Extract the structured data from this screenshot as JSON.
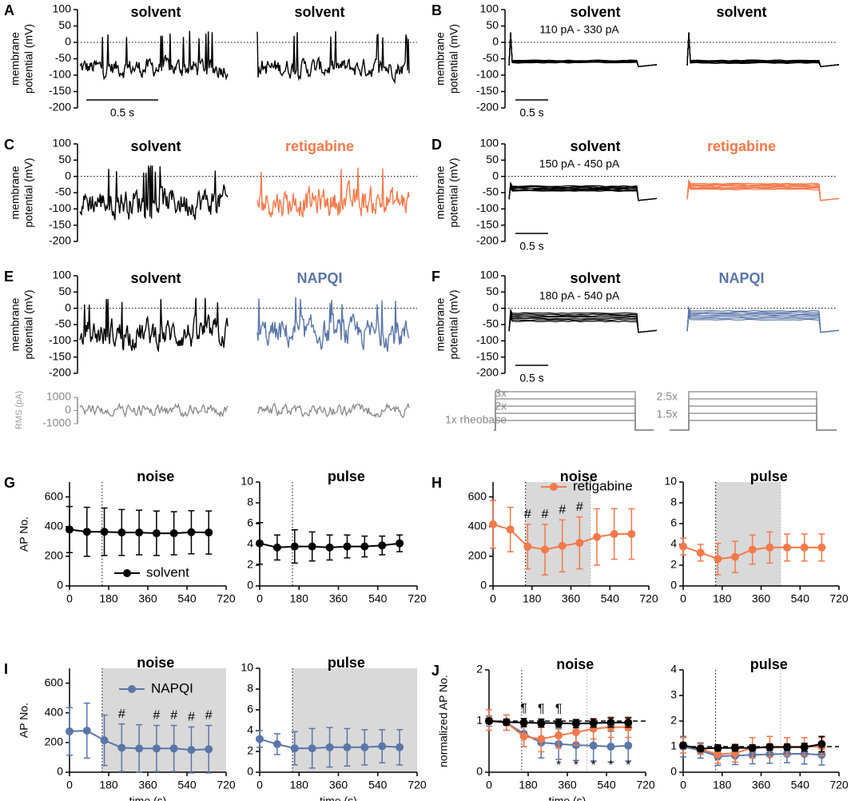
{
  "panels": [
    {
      "letter": "A",
      "type": "noise_trace",
      "ylabel": [
        "membrane",
        "potential (mV)"
      ],
      "ylim": [
        -200,
        100
      ],
      "yticks": [
        100,
        50,
        0,
        -50,
        -100,
        -150,
        -200
      ],
      "left_title": "solvent",
      "right_title": "solvent",
      "right_color": "#000000",
      "scale_bar": "0.5 s"
    },
    {
      "letter": "B",
      "type": "step_trace",
      "ylabel": [
        "membrane",
        "potential (mV)"
      ],
      "ylim": [
        -200,
        100
      ],
      "yticks": [
        100,
        50,
        0,
        -50,
        -100,
        -150,
        -200
      ],
      "left_title": "solvent",
      "right_title": "solvent",
      "right_color": "#000000",
      "scale_bar": "0.5 s",
      "current_label": "110 pA - 330 pA"
    },
    {
      "letter": "C",
      "type": "noise_trace",
      "ylabel": [
        "membrane",
        "potential (mV)"
      ],
      "ylim": [
        -200,
        100
      ],
      "yticks": [
        100,
        50,
        0,
        -50,
        -100,
        -150,
        -200
      ],
      "left_title": "solvent",
      "right_title": "retigabine",
      "right_color": "#f4794a"
    },
    {
      "letter": "D",
      "type": "step_trace",
      "ylabel": [
        "membrane",
        "potential (mV)"
      ],
      "ylim": [
        -200,
        100
      ],
      "yticks": [
        100,
        50,
        0,
        -50,
        -100,
        -150,
        -200
      ],
      "left_title": "solvent",
      "right_title": "retigabine",
      "right_color": "#f4794a",
      "scale_bar": "0.5 s",
      "current_label": "150 pA - 450 pA"
    },
    {
      "letter": "E",
      "type": "noise_trace",
      "ylabel": [
        "membrane",
        "potential (mV)"
      ],
      "ylim": [
        -200,
        100
      ],
      "yticks": [
        100,
        50,
        0,
        -50,
        -100,
        -150,
        -200
      ],
      "left_title": "solvent",
      "right_title": "NAPQI",
      "right_color": "#5a76a8"
    },
    {
      "letter": "F",
      "type": "step_trace",
      "ylabel": [
        "membrane",
        "potential (mV)"
      ],
      "ylim": [
        -200,
        100
      ],
      "yticks": [
        100,
        50,
        0,
        -50,
        -100,
        -150,
        -200
      ],
      "left_title": "solvent",
      "right_title": "NAPQI",
      "right_color": "#5a76a8",
      "scale_bar": "0.5 s",
      "current_label": "180 pA - 540 pA"
    }
  ],
  "stimulus": {
    "ylabel": "RMS (pA)",
    "ylim": [
      -1000,
      1000
    ],
    "yticks": [
      1000,
      0,
      -1000
    ],
    "left_labels": [
      "3x",
      "2x",
      "1x rheobase"
    ],
    "right_labels": [
      "2.5x",
      "1.5x"
    ]
  },
  "chart_data": [
    {
      "letter": "G",
      "type": "line",
      "title": "noise",
      "ylabel": "AP No.",
      "xlim": [
        0,
        720
      ],
      "xticks": [
        0,
        180,
        360,
        540,
        720
      ],
      "ylim": [
        0,
        700
      ],
      "yticks": [
        0,
        200,
        400,
        600
      ],
      "x": [
        0,
        80,
        160,
        240,
        320,
        400,
        480,
        560,
        640
      ],
      "vlines": [
        150
      ],
      "legend": "lower right",
      "series": [
        {
          "name": "solvent",
          "color": "#000000",
          "values": [
            380,
            365,
            365,
            360,
            360,
            355,
            355,
            362,
            360
          ],
          "errors": [
            155,
            165,
            160,
            155,
            150,
            150,
            145,
            145,
            145
          ]
        }
      ]
    },
    {
      "type": "line",
      "title": "pulse",
      "xlim": [
        0,
        720
      ],
      "xticks": [
        0,
        180,
        360,
        540,
        720
      ],
      "ylim": [
        0,
        10
      ],
      "yticks": [
        0,
        2,
        4,
        6,
        8,
        10
      ],
      "x": [
        0,
        80,
        160,
        240,
        320,
        400,
        480,
        560,
        640
      ],
      "vlines": [
        150
      ],
      "series": [
        {
          "color": "#000000",
          "values": [
            4.1,
            3.7,
            3.8,
            3.8,
            3.7,
            3.8,
            3.8,
            3.9,
            4.1
          ],
          "errors": [
            2.0,
            1.2,
            1.6,
            1.4,
            1.2,
            1.1,
            1.0,
            0.9,
            0.8
          ]
        }
      ]
    },
    {
      "letter": "H",
      "type": "line",
      "title": "noise",
      "xlim": [
        0,
        720
      ],
      "xticks": [
        0,
        180,
        360,
        540,
        720
      ],
      "ylim": [
        0,
        700
      ],
      "yticks": [
        0,
        200,
        400,
        600
      ],
      "x": [
        0,
        80,
        160,
        240,
        320,
        400,
        480,
        560,
        640
      ],
      "shade": [
        150,
        450
      ],
      "vlines": [
        150,
        450
      ],
      "legend": "upper center",
      "series": [
        {
          "name": "retigabine",
          "color": "#f4794a",
          "values": [
            415,
            380,
            265,
            245,
            270,
            290,
            330,
            350,
            350
          ],
          "errors": [
            160,
            150,
            150,
            170,
            175,
            175,
            190,
            170,
            170
          ]
        }
      ],
      "annotations": [
        {
          "text": "#",
          "index": 2,
          "position": "above"
        },
        {
          "text": "#",
          "index": 3,
          "position": "above"
        },
        {
          "text": "#",
          "index": 4,
          "position": "above"
        },
        {
          "text": "#",
          "index": 5,
          "position": "above"
        }
      ]
    },
    {
      "type": "line",
      "title": "pulse",
      "xlim": [
        0,
        720
      ],
      "xticks": [
        0,
        180,
        360,
        540,
        720
      ],
      "ylim": [
        0,
        10
      ],
      "yticks": [
        0,
        2,
        4,
        6,
        8,
        10
      ],
      "x": [
        0,
        80,
        160,
        240,
        320,
        400,
        480,
        560,
        640
      ],
      "shade": [
        150,
        450
      ],
      "vlines": [
        150,
        450
      ],
      "series": [
        {
          "color": "#f4794a",
          "values": [
            3.8,
            3.2,
            2.6,
            2.8,
            3.5,
            3.7,
            3.7,
            3.7,
            3.7
          ],
          "errors": [
            0.8,
            0.8,
            1.5,
            1.5,
            1.4,
            1.5,
            1.3,
            1.3,
            1.3
          ]
        }
      ]
    },
    {
      "letter": "I",
      "type": "line",
      "title": "noise",
      "ylabel": "AP No.",
      "xlabel": "time (s)",
      "xlim": [
        0,
        720
      ],
      "xticks": [
        0,
        180,
        360,
        540,
        720
      ],
      "ylim": [
        0,
        700
      ],
      "yticks": [
        0,
        200,
        400,
        600
      ],
      "x": [
        0,
        80,
        160,
        240,
        320,
        400,
        480,
        560,
        640
      ],
      "shade": [
        150,
        720
      ],
      "vlines": [
        150
      ],
      "legend": "upper left",
      "series": [
        {
          "name": "NAPQI",
          "color": "#5a76a8",
          "values": [
            275,
            280,
            215,
            165,
            160,
            160,
            160,
            150,
            155
          ],
          "errors": [
            160,
            185,
            170,
            160,
            160,
            155,
            155,
            155,
            160
          ]
        }
      ],
      "annotations": [
        {
          "text": "#",
          "index": 3,
          "position": "above"
        },
        {
          "text": "#",
          "index": 5,
          "position": "above"
        },
        {
          "text": "#",
          "index": 6,
          "position": "above"
        },
        {
          "text": "#",
          "index": 7,
          "position": "above"
        },
        {
          "text": "#",
          "index": 8,
          "position": "above"
        }
      ]
    },
    {
      "type": "line",
      "title": "pulse",
      "xlabel": "time (s)",
      "xlim": [
        0,
        720
      ],
      "xticks": [
        0,
        180,
        360,
        540,
        720
      ],
      "ylim": [
        0,
        10
      ],
      "yticks": [
        0,
        2,
        4,
        6,
        8,
        10
      ],
      "x": [
        0,
        80,
        160,
        240,
        320,
        400,
        480,
        560,
        640
      ],
      "shade": [
        150,
        720
      ],
      "vlines": [
        150
      ],
      "series": [
        {
          "color": "#5a76a8",
          "values": [
            3.2,
            2.7,
            2.3,
            2.3,
            2.4,
            2.4,
            2.4,
            2.5,
            2.4
          ],
          "errors": [
            0.8,
            1.0,
            1.6,
            1.9,
            1.9,
            1.8,
            1.7,
            1.6,
            1.7
          ]
        }
      ]
    },
    {
      "letter": "J",
      "type": "line",
      "title": "noise",
      "ylabel": "normalized AP No.",
      "xlabel": "time (s)",
      "xlim": [
        0,
        720
      ],
      "xticks": [
        0,
        180,
        360,
        540,
        720
      ],
      "ylim": [
        0,
        2
      ],
      "yticks": [
        0,
        1,
        2
      ],
      "x": [
        0,
        80,
        160,
        240,
        320,
        400,
        480,
        560,
        640
      ],
      "vlines": [
        150,
        450
      ],
      "refline": 1,
      "series": [
        {
          "color": "#5a76a8",
          "values": [
            1.0,
            0.97,
            0.75,
            0.58,
            0.55,
            0.53,
            0.52,
            0.5,
            0.52
          ],
          "errors": [
            0.1,
            0.15,
            0.25,
            0.3,
            0.3,
            0.3,
            0.3,
            0.3,
            0.3
          ]
        },
        {
          "color": "#f4794a",
          "values": [
            1.02,
            0.97,
            0.7,
            0.65,
            0.72,
            0.78,
            0.85,
            0.88,
            0.88
          ],
          "errors": [
            0.2,
            0.15,
            0.2,
            0.25,
            0.25,
            0.25,
            0.2,
            0.2,
            0.2
          ]
        },
        {
          "color": "#000000",
          "values": [
            1.0,
            0.98,
            0.97,
            0.96,
            0.96,
            0.95,
            0.96,
            0.97,
            0.97
          ],
          "errors": [
            0.05,
            0.06,
            0.08,
            0.08,
            0.08,
            0.08,
            0.08,
            0.09,
            0.09
          ]
        }
      ],
      "annotations": [
        {
          "text": "¶",
          "index": 2,
          "position": "above"
        },
        {
          "text": "¶",
          "index": 3,
          "position": "above"
        },
        {
          "text": "¶",
          "index": 4,
          "position": "above"
        },
        {
          "text": "*",
          "index": 4,
          "position": "below"
        },
        {
          "text": "*",
          "index": 5,
          "position": "below"
        },
        {
          "text": "*",
          "index": 6,
          "position": "below"
        },
        {
          "text": "*",
          "index": 7,
          "position": "below"
        },
        {
          "text": "*",
          "index": 8,
          "position": "below"
        }
      ]
    },
    {
      "type": "line",
      "title": "pulse",
      "xlim": [
        0,
        720
      ],
      "xticks": [
        0,
        180,
        360,
        540,
        720
      ],
      "ylim": [
        0,
        4
      ],
      "yticks": [
        0,
        1,
        2,
        3,
        4
      ],
      "x": [
        0,
        80,
        160,
        240,
        320,
        400,
        480,
        560,
        640
      ],
      "vlines": [
        150,
        450
      ],
      "refline": 1,
      "series": [
        {
          "color": "#5a76a8",
          "values": [
            1.0,
            0.85,
            0.62,
            0.65,
            0.68,
            0.7,
            0.72,
            0.72,
            0.68
          ],
          "errors": [
            0.4,
            0.3,
            0.35,
            0.35,
            0.35,
            0.35,
            0.35,
            0.4,
            0.4
          ]
        },
        {
          "color": "#f4794a",
          "values": [
            1.05,
            0.9,
            0.7,
            0.75,
            0.95,
            1.0,
            1.0,
            1.0,
            1.0
          ],
          "errors": [
            0.3,
            0.2,
            0.35,
            0.35,
            0.4,
            0.4,
            0.35,
            0.35,
            0.35
          ]
        },
        {
          "color": "#000000",
          "values": [
            1.05,
            0.92,
            0.95,
            0.95,
            0.95,
            0.98,
            0.98,
            0.98,
            1.1
          ],
          "errors": [
            0.1,
            0.1,
            0.12,
            0.12,
            0.12,
            0.12,
            0.12,
            0.15,
            0.3
          ]
        }
      ]
    }
  ]
}
